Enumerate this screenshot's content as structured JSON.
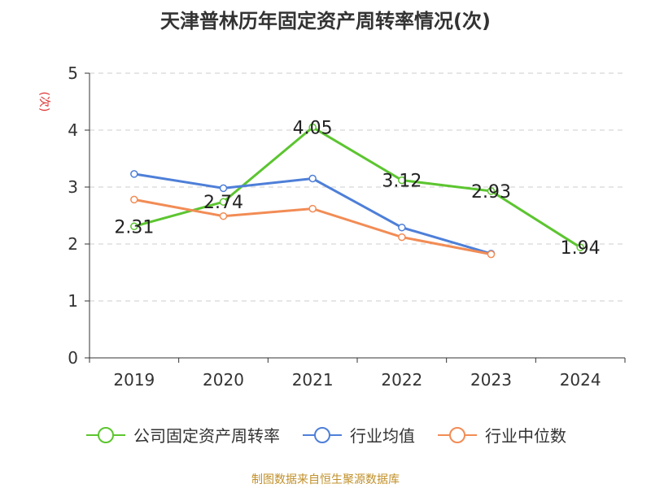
{
  "chart_data": {
    "type": "line",
    "title": "天津普林历年固定资产周转率情况(次)",
    "ylabel": "(次)",
    "categories": [
      "2019",
      "2020",
      "2021",
      "2022",
      "2023",
      "2024"
    ],
    "ylim": [
      0,
      5
    ],
    "yticks": [
      "0",
      "1",
      "2",
      "3",
      "4",
      "5"
    ],
    "grid": true,
    "legend_position": "bottom",
    "series": [
      {
        "name": "公司固定资产周转率",
        "color": "#5cc530",
        "values": [
          2.31,
          2.74,
          4.05,
          3.12,
          2.93,
          1.94
        ],
        "labels": [
          "2.31",
          "2.74",
          "4.05",
          "3.12",
          "2.93",
          "1.94"
        ]
      },
      {
        "name": "行业均值",
        "color": "#4e7fd8",
        "values": [
          3.23,
          2.98,
          3.15,
          2.29,
          1.83,
          null
        ]
      },
      {
        "name": "行业中位数",
        "color": "#f28c55",
        "values": [
          2.78,
          2.49,
          2.62,
          2.12,
          1.82,
          null
        ]
      }
    ]
  },
  "footer": {
    "source": "制图数据来自恒生聚源数据库"
  }
}
